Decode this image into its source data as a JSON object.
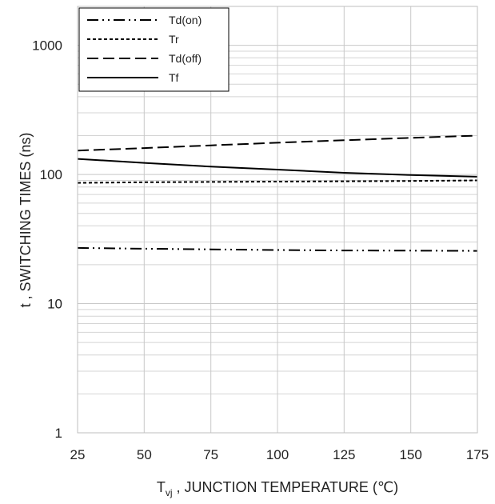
{
  "chart_data": {
    "type": "line",
    "xlabel_main": "T",
    "xlabel_sub": "vj",
    "xlabel_rest": " , JUNCTION TEMPERATURE (℃)",
    "ylabel": "t , SWITCHING TIMES (ns)",
    "x_ticks": [
      "25",
      "50",
      "75",
      "100",
      "125",
      "150",
      "175"
    ],
    "y_ticks": [
      "1",
      "10",
      "100",
      "1000"
    ],
    "xlim": [
      25,
      175
    ],
    "ylim": [
      1,
      2000
    ],
    "yscale": "log",
    "grid": true,
    "legend_position": "top-left",
    "x": [
      25,
      50,
      75,
      100,
      125,
      150,
      175
    ],
    "series": [
      {
        "name": "Td(on)",
        "style": "dash-dot-dot",
        "values": [
          27,
          26.6,
          26.3,
          26.0,
          25.8,
          25.7,
          25.6
        ]
      },
      {
        "name": "Tr",
        "style": "dotted",
        "values": [
          86,
          87,
          87.5,
          88,
          88.5,
          89,
          90
        ]
      },
      {
        "name": "Td(off)",
        "style": "dashed",
        "values": [
          153,
          160,
          168,
          176,
          184,
          192,
          200
        ]
      },
      {
        "name": "Tf",
        "style": "solid",
        "values": [
          132,
          123,
          115,
          109,
          103,
          99,
          96
        ]
      }
    ],
    "colors": {
      "line": "#000000",
      "major_grid": "#c8c8c8",
      "minor_grid": "#d4d4d4",
      "frame": "#bfbfbf"
    }
  }
}
